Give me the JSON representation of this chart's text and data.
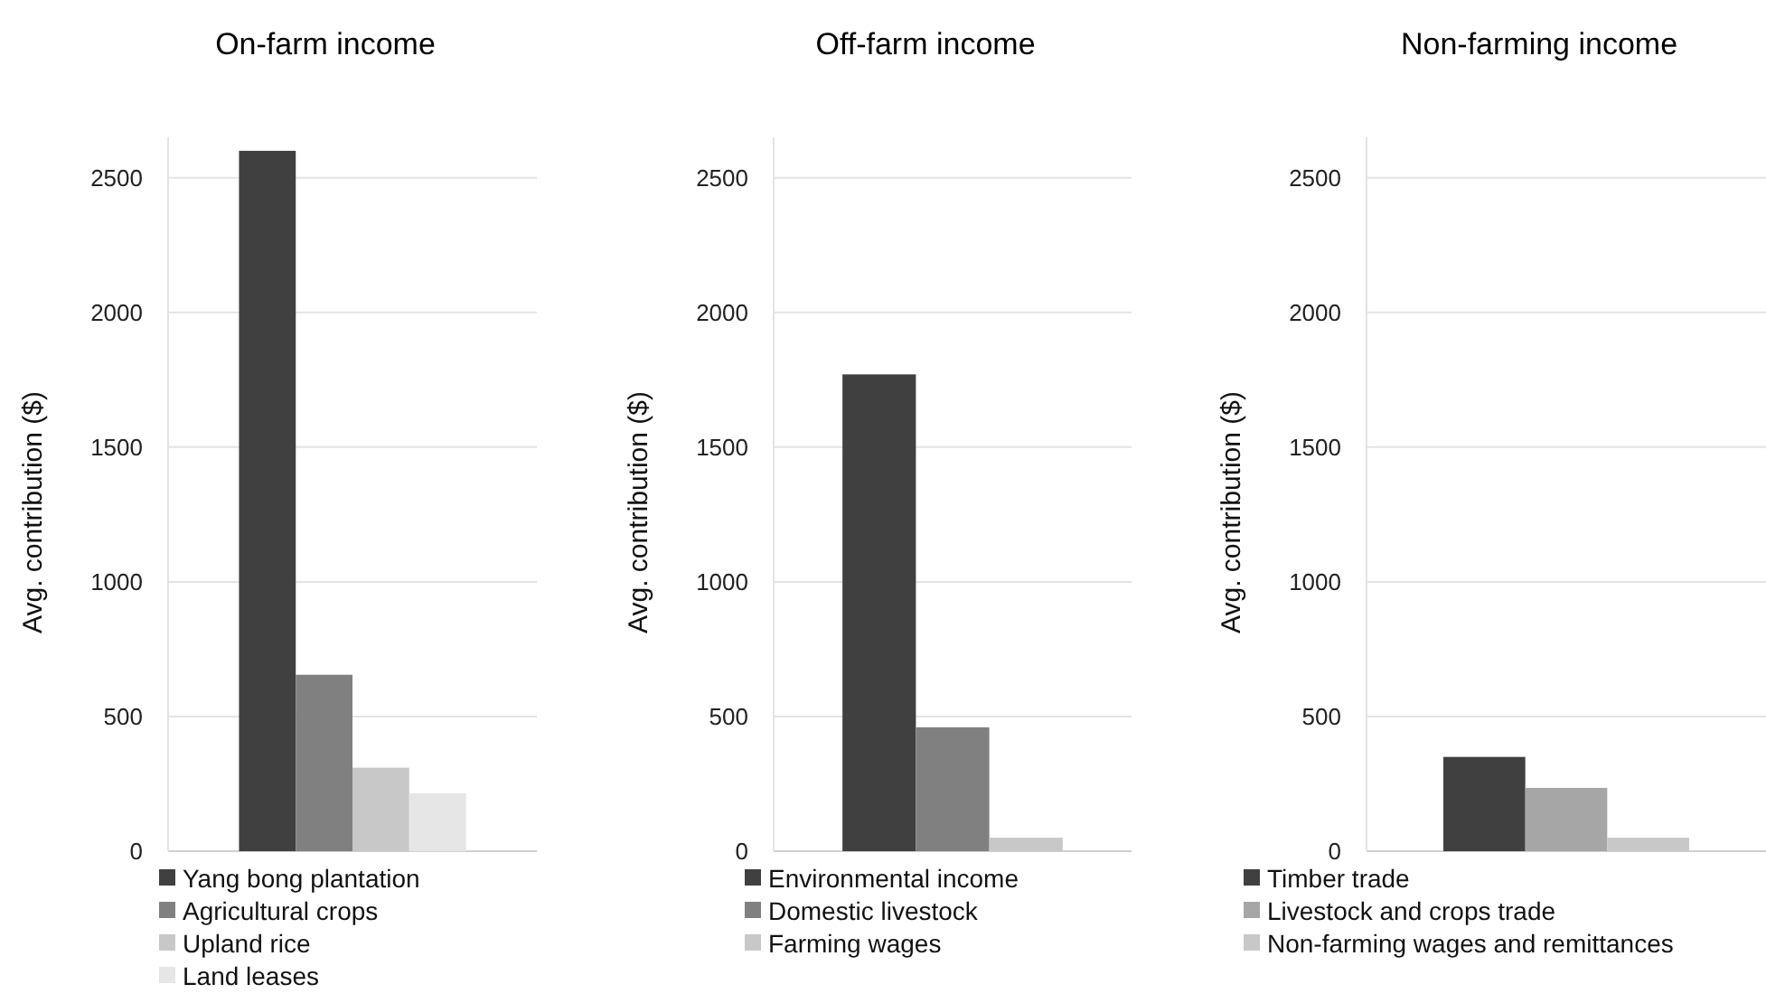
{
  "chart_data": [
    {
      "type": "bar",
      "title": "On-farm income",
      "ylabel": "Avg. contribution ($)",
      "categories": [
        null
      ],
      "ylim": [
        0,
        2650
      ],
      "yticks": [
        0,
        500,
        1000,
        1500,
        2000,
        2500
      ],
      "grid": "y",
      "legend": "bottom",
      "series": [
        {
          "name": "Yang bong plantation",
          "color": "#404040",
          "values": [
            2600
          ]
        },
        {
          "name": "Agricultural crops",
          "color": "#808080",
          "values": [
            655
          ]
        },
        {
          "name": "Upland rice",
          "color": "#c8c8c8",
          "values": [
            310
          ]
        },
        {
          "name": "Land leases",
          "color": "#e6e6e6",
          "values": [
            215
          ]
        }
      ]
    },
    {
      "type": "bar",
      "title": "Off-farm income",
      "ylabel": "Avg. contribution ($)",
      "categories": [
        null
      ],
      "ylim": [
        0,
        2650
      ],
      "yticks": [
        0,
        500,
        1000,
        1500,
        2000,
        2500
      ],
      "grid": "y",
      "legend": "bottom",
      "series": [
        {
          "name": "Environmental income",
          "color": "#404040",
          "values": [
            1770
          ]
        },
        {
          "name": "Domestic livestock",
          "color": "#808080",
          "values": [
            460
          ]
        },
        {
          "name": "Farming wages",
          "color": "#c8c8c8",
          "values": [
            50
          ]
        }
      ]
    },
    {
      "type": "bar",
      "title": "Non-farming income",
      "ylabel": "Avg. contribution ($)",
      "categories": [
        null
      ],
      "ylim": [
        0,
        2650
      ],
      "yticks": [
        0,
        500,
        1000,
        1500,
        2000,
        2500
      ],
      "grid": "y",
      "legend": "bottom",
      "series": [
        {
          "name": "Timber trade",
          "color": "#404040",
          "values": [
            350
          ]
        },
        {
          "name": "Livestock and crops trade",
          "color": "#a6a6a6",
          "values": [
            235
          ]
        },
        {
          "name": "Non-farming wages and remittances",
          "color": "#c8c8c8",
          "values": [
            50
          ]
        }
      ]
    }
  ]
}
